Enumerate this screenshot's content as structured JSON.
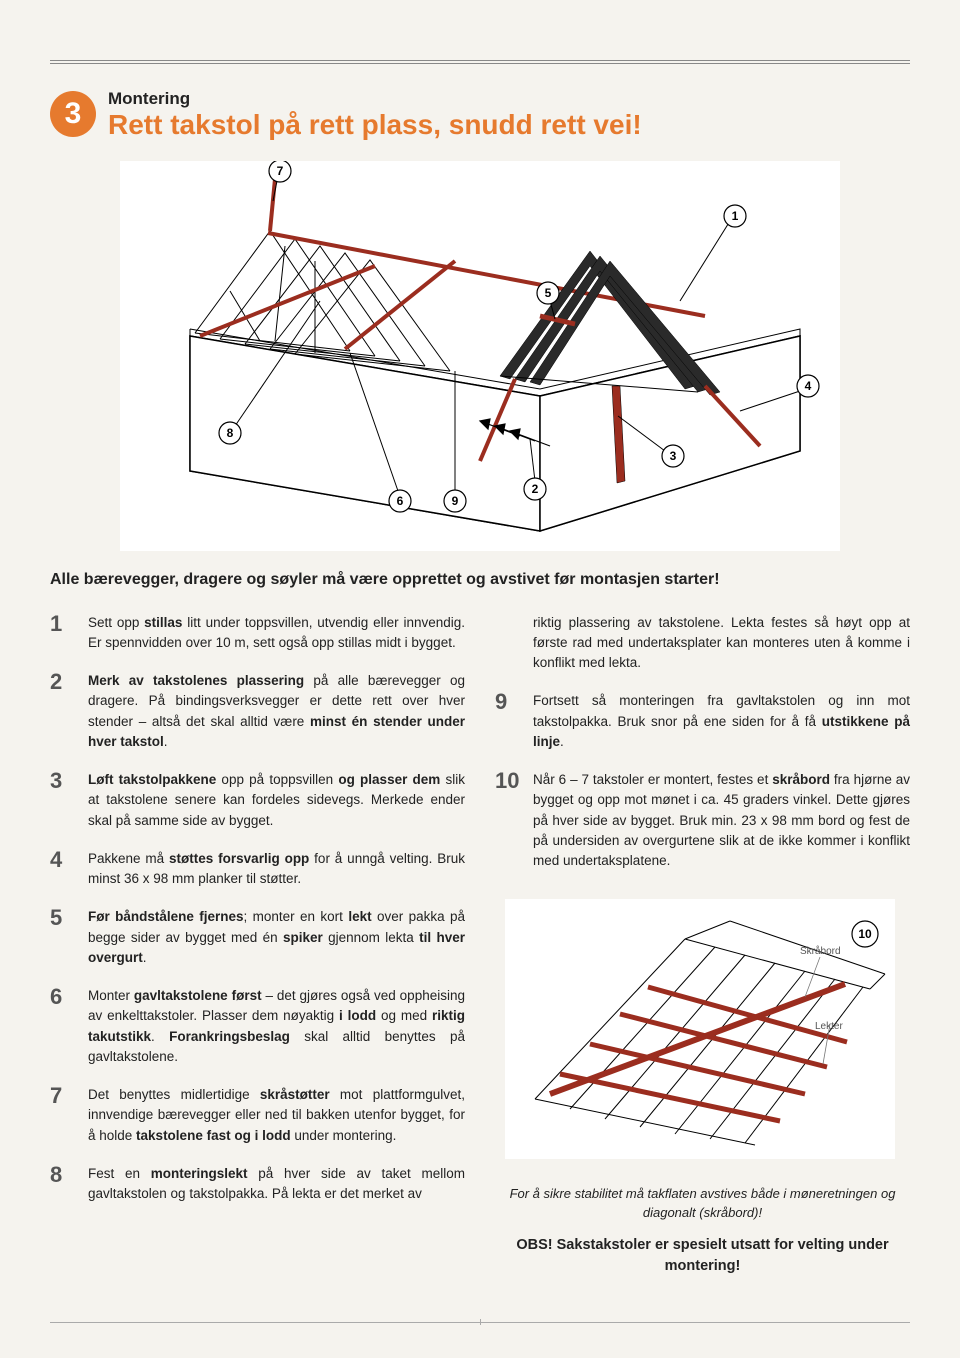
{
  "section": {
    "number": "3",
    "overline": "Montering",
    "title": "Rett takstol på rett plass, snudd rett vei!"
  },
  "intro": "Alle bærevegger, dragere og søyler må være opprettet og avstivet før montasjen starter!",
  "main_callouts": [
    "1",
    "2",
    "3",
    "4",
    "5",
    "6",
    "7",
    "8",
    "9"
  ],
  "steps_left": [
    {
      "n": "1",
      "html": "Sett opp <b>stillas</b> litt under toppsvillen, utvendig eller innvendig. Er spennvidden over 10 m, sett også opp stillas midt i bygget."
    },
    {
      "n": "2",
      "html": "<b>Merk av takstolenes plassering</b> på alle bærevegger og dragere. På bindingsverksvegger er dette rett over hver stender – altså det skal alltid være <b>minst én stender under hver takstol</b>."
    },
    {
      "n": "3",
      "html": "<b>Løft takstolpakkene</b> opp på toppsvillen <b>og plasser dem</b> slik at takstolene senere kan fordeles sidevegs. Merkede ender skal på samme side av bygget."
    },
    {
      "n": "4",
      "html": "Pakkene må <b>støttes forsvarlig opp</b> for å unngå velting. Bruk minst 36 x 98 mm planker til støtter."
    },
    {
      "n": "5",
      "html": "<b>Før båndstålene fjernes</b>; monter en kort <b>lekt</b> over pakka på begge sider av bygget med én <b>spiker</b> gjennom lekta <b>til hver overgurt</b>."
    },
    {
      "n": "6",
      "html": "Monter <b>gavltakstolene først</b> – det gjøres også ved oppheising av enkelttakstoler. Plasser dem nøyaktig <b>i lodd</b> og med <b>riktig takutstikk</b>. <b>Forankringsbeslag</b> skal alltid benyttes på gavltakstolene."
    },
    {
      "n": "7",
      "html": "Det benyttes midlertidige <b>skråstøtter</b> mot plattformgulvet, innvendige bærevegger eller ned til bakken utenfor bygget, for å holde <b>takstolene fast og i lodd</b> under montering."
    },
    {
      "n": "8",
      "html": "Fest en <b>monteringslekt</b> på hver side av taket mellom gavltakstolen og takstolpakka. På lekta er det merket av"
    }
  ],
  "cont8": "riktig plassering av takstolene. Lekta festes så høyt opp at første rad med undertaksplater kan monteres uten å komme i konflikt med lekta.",
  "steps_right": [
    {
      "n": "9",
      "html": "Fortsett så monteringen fra gavltakstolen og inn mot takstolpakka. Bruk snor på ene siden for å få <b>utstikkene på linje</b>."
    },
    {
      "n": "10",
      "html": "Når 6 – 7 takstoler er montert, festes et <b>skråbord</b> fra hjørne av bygget og opp mot mønet i ca. 45 graders vinkel. Dette gjøres på hver side av bygget. Bruk min. 23 x 98 mm bord og fest de på undersiden av overgurtene slik at de ikke kommer i konflikt med undertaksplatene."
    }
  ],
  "sub_labels": {
    "skrabord": "Skråbord",
    "lekter": "Lekter",
    "badge": "10"
  },
  "sub_caption": "For å sikre stabilitet må takflaten avstives både i møneretningen og diagonalt (skråbord)!",
  "warning": "OBS! Sakstakstoler er spesielt utsatt for velting under montering!",
  "colors": {
    "accent": "#e67a2e",
    "brace": "#9b2d1f",
    "bg": "#f5f3ee"
  }
}
